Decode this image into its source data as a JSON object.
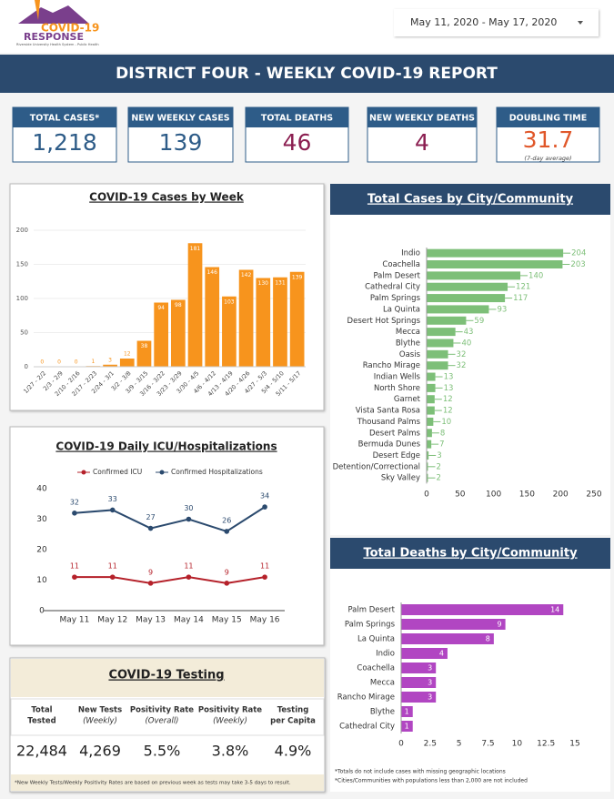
{
  "header": {
    "logo_line1": "COVID-19",
    "logo_line2": "RESPONSE",
    "logo_sub": "Riverside University Health System - Public Health",
    "date_range": "May 11, 2020 - May 17, 2020",
    "title": "DISTRICT FOUR - WEEKLY COVID-19 REPORT"
  },
  "kpis": [
    {
      "label": "TOTAL CASES*",
      "value": "1,218",
      "color": "#2e5c88"
    },
    {
      "label": "NEW WEEKLY CASES",
      "value": "139",
      "color": "#2e5c88"
    },
    {
      "label": "TOTAL DEATHS",
      "value": "46",
      "color": "#8b1e50"
    },
    {
      "label": "NEW WEEKLY DEATHS",
      "value": "4",
      "color": "#8b1e50"
    },
    {
      "label": "DOUBLING TIME",
      "value": "31.7",
      "sub": "(7-day average)",
      "color": "#e0572a"
    }
  ],
  "chart_data": [
    {
      "type": "bar",
      "title": "COVID-19 Cases by Week",
      "categories": [
        "1/27 - 2/2",
        "2/3 - 2/9",
        "2/10 - 2/16",
        "2/17 - 2/23",
        "2/24 - 3/1",
        "3/2 - 3/8",
        "3/9 - 3/15",
        "3/16 - 3/22",
        "3/23 - 3/29",
        "3/30 - 4/5",
        "4/6 - 4/12",
        "4/13 - 4/19",
        "4/20 - 4/26",
        "4/27 - 5/3",
        "5/4 - 5/10",
        "5/11 - 5/17"
      ],
      "values": [
        0,
        0,
        0,
        1,
        3,
        12,
        38,
        94,
        98,
        181,
        146,
        103,
        142,
        130,
        131,
        139
      ],
      "color": "#f7941d",
      "ylim": [
        0,
        200
      ],
      "yticks": [
        0,
        50,
        100,
        150,
        200
      ]
    },
    {
      "type": "line",
      "title": "COVID-19 Daily ICU/Hospitalizations",
      "categories": [
        "May 11",
        "May 12",
        "May 13",
        "May 14",
        "May 15",
        "May 16"
      ],
      "series": [
        {
          "name": "Confirmed ICU",
          "color": "#b5212a",
          "values": [
            11,
            11,
            9,
            11,
            9,
            11
          ]
        },
        {
          "name": "Confirmed Hospitalizations",
          "color": "#2b4a6e",
          "values": [
            32,
            33,
            27,
            30,
            26,
            34
          ]
        }
      ],
      "ylim": [
        0,
        40
      ],
      "yticks": [
        0,
        10,
        20,
        30,
        40
      ],
      "legend": "top"
    },
    {
      "type": "hbar",
      "title": "Total Cases by City/Community",
      "categories": [
        "Indio",
        "Coachella",
        "Palm Desert",
        "Cathedral City",
        "Palm Springs",
        "La Quinta",
        "Desert Hot Springs",
        "Mecca",
        "Blythe",
        "Oasis",
        "Rancho Mirage",
        "Indian Wells",
        "North Shore",
        "Garnet",
        "Vista Santa Rosa",
        "Thousand Palms",
        "Desert Palms",
        "Bermuda Dunes",
        "Desert Edge",
        "Detention/Correctional",
        "Sky Valley"
      ],
      "values": [
        204,
        203,
        140,
        121,
        117,
        93,
        59,
        43,
        40,
        32,
        32,
        13,
        13,
        12,
        12,
        10,
        8,
        7,
        3,
        2,
        2
      ],
      "color": "#7dbf78",
      "xlim": [
        0,
        250
      ],
      "xticks": [
        0,
        50,
        100,
        150,
        200,
        250
      ]
    },
    {
      "type": "hbar",
      "title": "Total Deaths by City/Community",
      "categories": [
        "Palm Desert",
        "Palm Springs",
        "La Quinta",
        "Indio",
        "Coachella",
        "Mecca",
        "Rancho Mirage",
        "Blythe",
        "Cathedral City"
      ],
      "values": [
        14,
        9,
        8,
        4,
        3,
        3,
        3,
        1,
        1
      ],
      "color": "#b146c2",
      "xlim": [
        0,
        15
      ],
      "xticks": [
        0,
        2.5,
        5,
        7.5,
        10,
        12.5,
        15
      ],
      "notes": [
        "*Totals do not include cases with missing geographic locations",
        "*Cities/Communities with populations less than 2,000 are not included"
      ]
    }
  ],
  "testing": {
    "title": "COVID-19 Testing",
    "columns": [
      {
        "label": "Total",
        "sub": "Tested",
        "value": "22,484"
      },
      {
        "label": "New Tests",
        "sub": "(Weekly)",
        "value": "4,269"
      },
      {
        "label": "Positivity Rate",
        "sub": "(Overall)",
        "value": "5.5%"
      },
      {
        "label": "Positivity Rate",
        "sub": "(Weekly)",
        "value": "3.8%"
      },
      {
        "label": "Testing",
        "sub": "per Capita",
        "value": "4.9%"
      }
    ],
    "note": "*New Weekly Tests/Weekly Positivity Rates are based on previous week as tests may take 3-5 days to result."
  }
}
